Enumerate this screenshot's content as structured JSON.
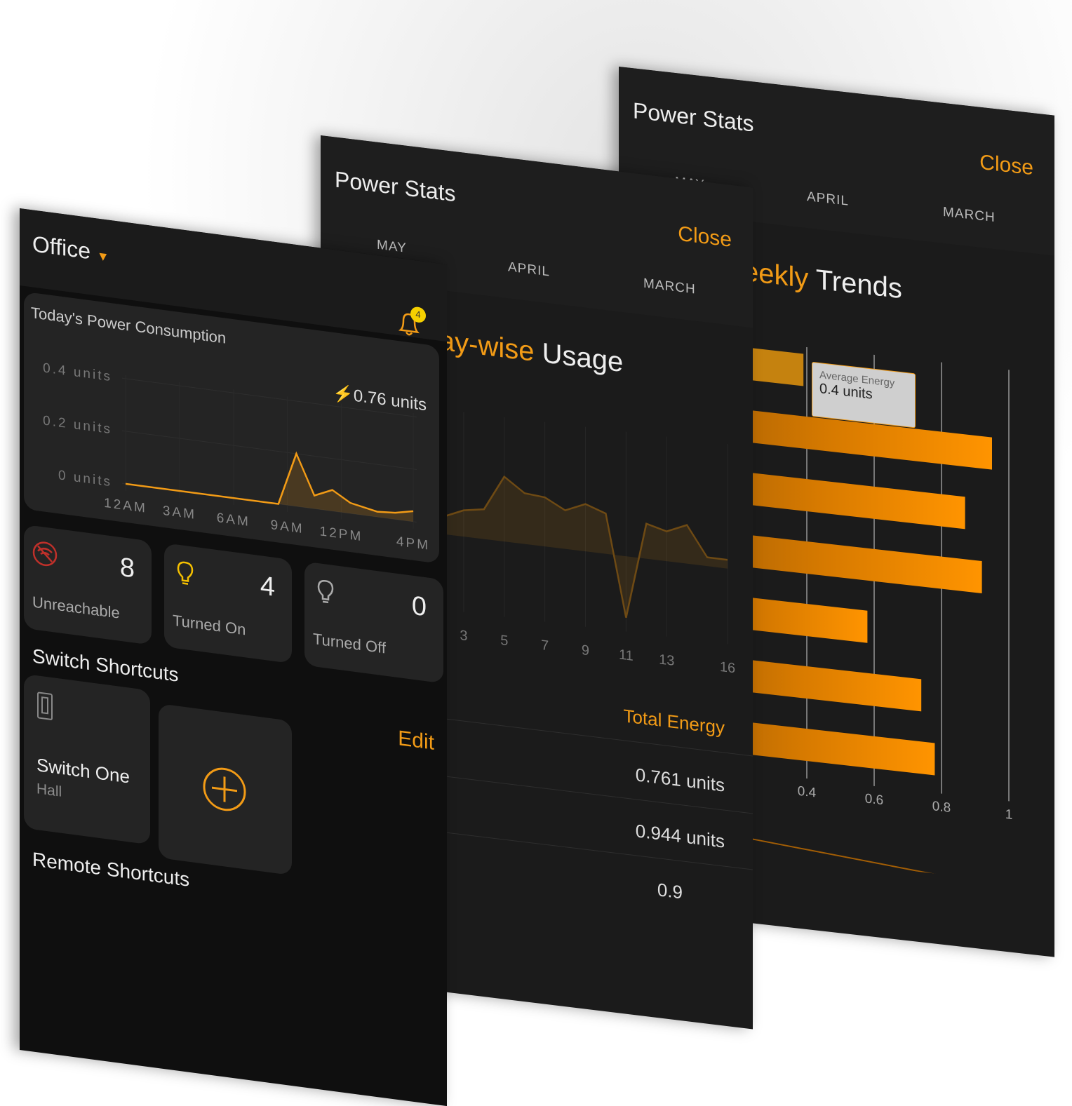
{
  "office": {
    "location": "Office",
    "notifications": "4",
    "chart_title": "Today's Power Consumption",
    "total": "0.76 units",
    "stats": [
      {
        "value": "8",
        "label": "Unreachable",
        "icon": "wifi-off-icon"
      },
      {
        "value": "4",
        "label": "Turned On",
        "icon": "bulb-on-icon"
      },
      {
        "value": "0",
        "label": "Turned Off",
        "icon": "bulb-off-icon"
      }
    ],
    "switch_title": "Switch Shortcuts",
    "edit": "Edit",
    "switch": {
      "name": "Switch One",
      "room": "Hall"
    },
    "remote_title": "Remote Shortcuts"
  },
  "daywise": {
    "title": "Power Stats",
    "close": "Close",
    "tabs": [
      "MAY",
      "APRIL",
      "MARCH"
    ],
    "heading_accent": "Day-wise",
    "heading_rest": "Usage",
    "energy_header": "Total Energy",
    "rows": [
      "0.761 units",
      "0.944 units",
      "0.9"
    ]
  },
  "weekly": {
    "title": "Power Stats",
    "close": "Close",
    "tabs": [
      "MAY",
      "APRIL",
      "MARCH"
    ],
    "heading_accent": "Weekly",
    "heading_rest": "Trends",
    "tooltip_label": "Average Energy",
    "tooltip_value": "0.4 units"
  },
  "colors": {
    "accent": "#f29b16",
    "panel": "#1b1b1b",
    "card": "#242424",
    "error": "#c0302a",
    "badge": "#f5d000"
  },
  "chart_data": [
    {
      "type": "line",
      "title": "Today's Power Consumption",
      "x": [
        0,
        8.5,
        9.5,
        10.5,
        11.5,
        12.5,
        14,
        15,
        16
      ],
      "values": [
        0,
        0,
        0.2,
        0.05,
        0.08,
        0.04,
        0.02,
        0.025,
        0.04
      ],
      "xticks": [
        "12AM",
        "3AM",
        "6AM",
        "9AM",
        "12PM",
        "4PM"
      ],
      "xtick_values": [
        0,
        3,
        6,
        9,
        12,
        16
      ],
      "yticks": [
        "0 units",
        "0.2 units",
        "0.4 units"
      ],
      "ylim": [
        0,
        0.4
      ],
      "grid": true
    },
    {
      "type": "area",
      "title": "Day-wise Usage",
      "x": [
        2,
        3,
        4,
        5,
        6,
        7,
        8,
        9,
        10,
        11,
        12,
        13,
        14,
        15,
        16
      ],
      "values": [
        0.55,
        0.6,
        0.62,
        0.82,
        0.74,
        0.73,
        0.67,
        0.72,
        0.68,
        0.1,
        0.65,
        0.62,
        0.67,
        0.5,
        0.5
      ],
      "xticks": [
        "3",
        "5",
        "7",
        "9",
        "11",
        "13",
        "16"
      ],
      "xtick_values": [
        3,
        5,
        7,
        9,
        11,
        13,
        16
      ],
      "ylim": [
        0,
        1
      ],
      "grid": true
    },
    {
      "type": "bar",
      "orientation": "horizontal",
      "title": "Weekly Trends",
      "values": [
        0.39,
        0.95,
        0.87,
        0.92,
        0.58,
        0.74,
        0.78
      ],
      "xticks": [
        "0.4",
        "0.6",
        "0.8",
        "1"
      ],
      "xtick_values": [
        0.4,
        0.6,
        0.8,
        1
      ],
      "xlim": [
        0,
        1
      ],
      "grid": true
    }
  ]
}
